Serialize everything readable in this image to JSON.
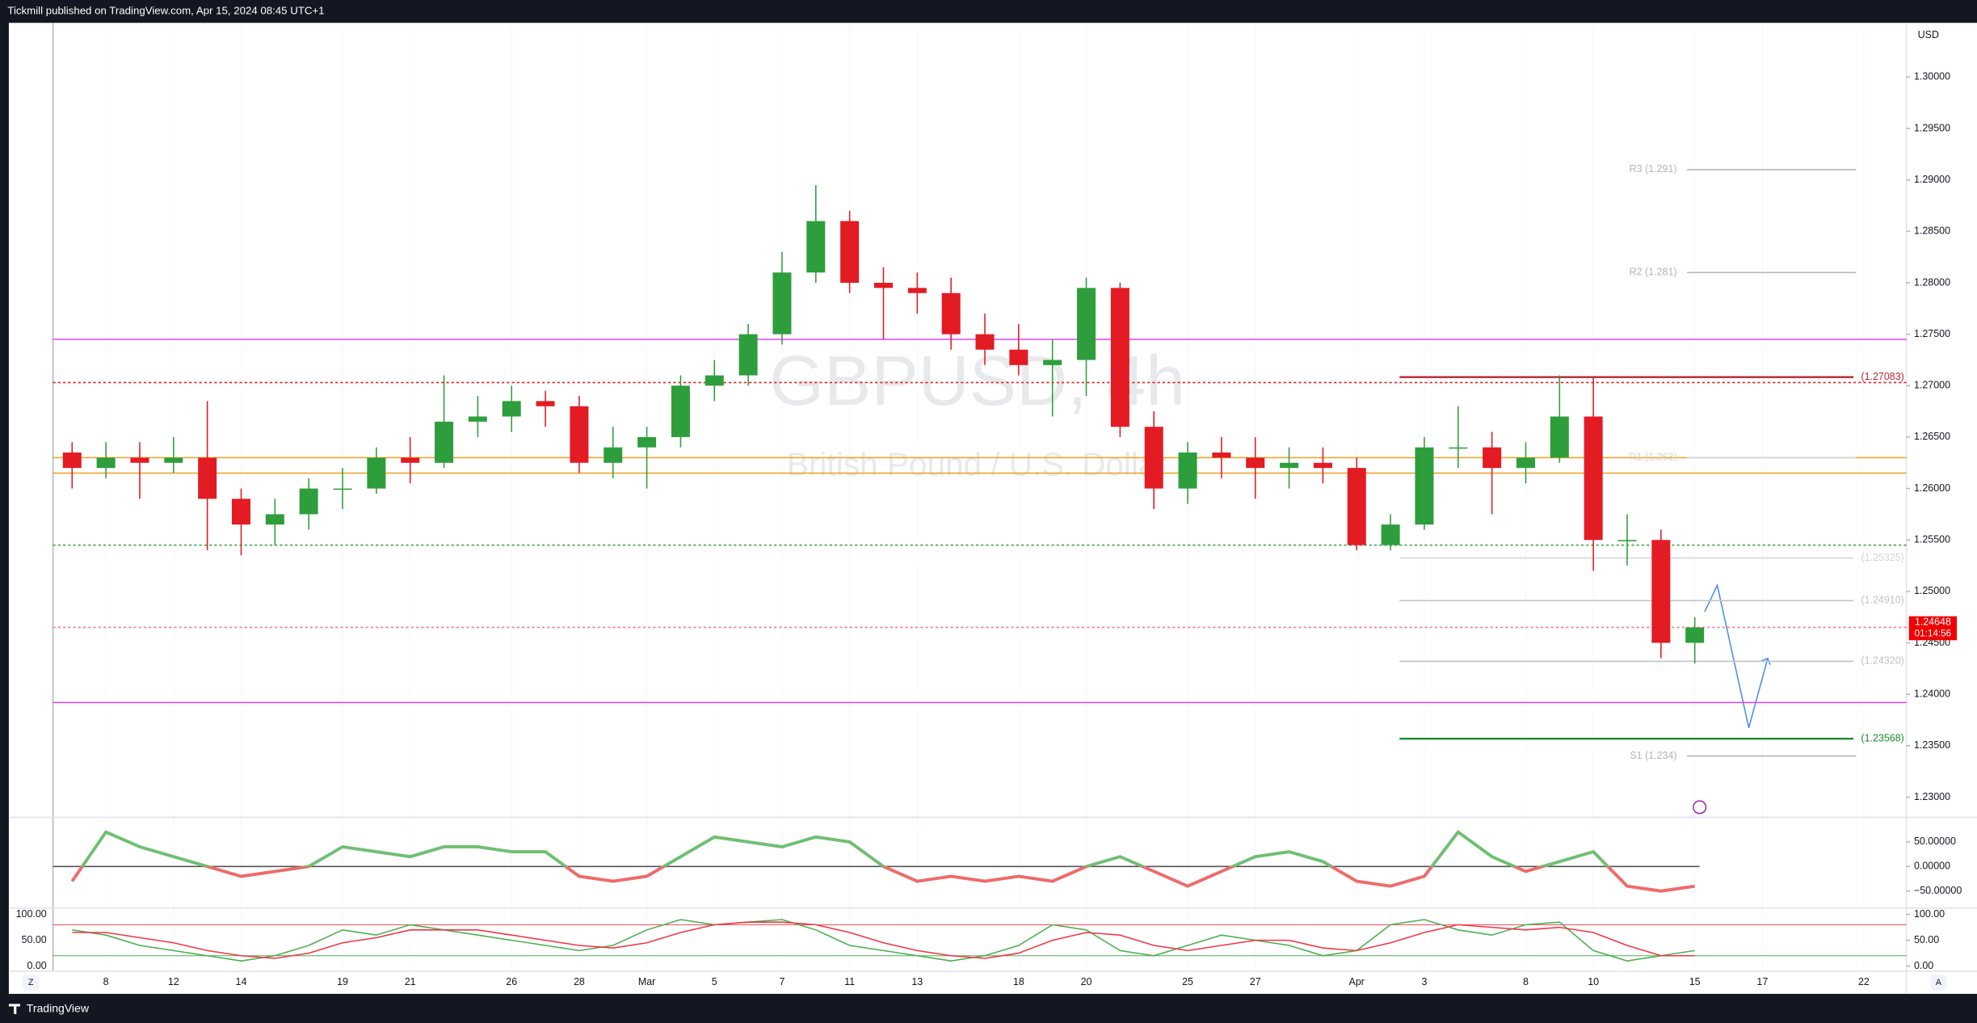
{
  "header": {
    "title": "Tickmill published on TradingView.com, Apr 15, 2024 08:45 UTC+1"
  },
  "footer": {
    "brand": "TradingView",
    "left_button": "Z",
    "right_button": "A"
  },
  "chart_data": [
    {
      "type": "candlestick",
      "title": "GBPUSD, 4h",
      "subtitle": "British Pound / U.S. Dollar",
      "currency": "USD",
      "colors": {
        "up": "#2e9e3c",
        "down": "#e31b23"
      },
      "x": [
        -1,
        0,
        1,
        2,
        3,
        4,
        5,
        6,
        7,
        8,
        9,
        10,
        11,
        12,
        13,
        14,
        15,
        16,
        17,
        18,
        19,
        20,
        21,
        22,
        23,
        24,
        25,
        26,
        27,
        28,
        29,
        30,
        31,
        32,
        33,
        34,
        35,
        36,
        37,
        38,
        39,
        40,
        41,
        42,
        43,
        44,
        45,
        46,
        47
      ],
      "open": [
        1.2635,
        1.262,
        1.263,
        1.2625,
        1.263,
        1.259,
        1.2565,
        1.2575,
        1.26,
        1.26,
        1.263,
        1.2625,
        1.2665,
        1.267,
        1.2685,
        1.268,
        1.2625,
        1.264,
        1.265,
        1.27,
        1.271,
        1.275,
        1.281,
        1.286,
        1.28,
        1.2795,
        1.279,
        1.275,
        1.2735,
        1.272,
        1.2725,
        1.2795,
        1.266,
        1.26,
        1.2635,
        1.263,
        1.262,
        1.2625,
        1.262,
        1.2545,
        1.2565,
        1.264,
        1.264,
        1.262,
        1.263,
        1.267,
        1.255,
        1.255,
        1.245
      ],
      "high": [
        1.2645,
        1.2645,
        1.2645,
        1.265,
        1.2685,
        1.26,
        1.259,
        1.261,
        1.262,
        1.264,
        1.265,
        1.271,
        1.269,
        1.27,
        1.2695,
        1.269,
        1.266,
        1.266,
        1.271,
        1.2725,
        1.276,
        1.283,
        1.2895,
        1.287,
        1.2815,
        1.281,
        1.2805,
        1.277,
        1.276,
        1.2745,
        1.2805,
        1.28,
        1.2675,
        1.2645,
        1.265,
        1.265,
        1.264,
        1.264,
        1.263,
        1.2575,
        1.265,
        1.268,
        1.2655,
        1.2645,
        1.271,
        1.2708,
        1.2575,
        1.256,
        1.2475
      ],
      "low": [
        1.26,
        1.261,
        1.259,
        1.2615,
        1.254,
        1.2535,
        1.2545,
        1.256,
        1.258,
        1.2595,
        1.2605,
        1.262,
        1.265,
        1.2655,
        1.266,
        1.2615,
        1.261,
        1.26,
        1.264,
        1.2685,
        1.27,
        1.274,
        1.28,
        1.279,
        1.2745,
        1.277,
        1.2735,
        1.272,
        1.271,
        1.267,
        1.269,
        1.265,
        1.258,
        1.2585,
        1.261,
        1.259,
        1.26,
        1.2605,
        1.254,
        1.254,
        1.256,
        1.262,
        1.2575,
        1.2605,
        1.2625,
        1.252,
        1.2525,
        1.2435,
        1.243
      ],
      "close": [
        1.262,
        1.263,
        1.2625,
        1.263,
        1.259,
        1.2565,
        1.2575,
        1.26,
        1.26,
        1.263,
        1.2625,
        1.2665,
        1.267,
        1.2685,
        1.268,
        1.2625,
        1.264,
        1.265,
        1.27,
        1.271,
        1.275,
        1.281,
        1.286,
        1.28,
        1.2795,
        1.279,
        1.275,
        1.2735,
        1.272,
        1.2725,
        1.2795,
        1.266,
        1.26,
        1.2635,
        1.263,
        1.262,
        1.2625,
        1.262,
        1.2545,
        1.2565,
        1.264,
        1.264,
        1.262,
        1.263,
        1.267,
        1.255,
        1.255,
        1.245,
        1.2465
      ],
      "xlim": [
        -1.567,
        53.26
      ],
      "xticks": [
        {
          "value": 0,
          "label": "8"
        },
        {
          "value": 2,
          "label": "12"
        },
        {
          "value": 4,
          "label": "14"
        },
        {
          "value": 7,
          "label": "19"
        },
        {
          "value": 9,
          "label": "21"
        },
        {
          "value": 12,
          "label": "26"
        },
        {
          "value": 14,
          "label": "28"
        },
        {
          "value": 16,
          "label": "Mar"
        },
        {
          "value": 18,
          "label": "5"
        },
        {
          "value": 20,
          "label": "7"
        },
        {
          "value": 22,
          "label": "11"
        },
        {
          "value": 24,
          "label": "13"
        },
        {
          "value": 27,
          "label": "18"
        },
        {
          "value": 29,
          "label": "20"
        },
        {
          "value": 32,
          "label": "25"
        },
        {
          "value": 34,
          "label": "27"
        },
        {
          "value": 37,
          "label": "Apr"
        },
        {
          "value": 39,
          "label": "3"
        },
        {
          "value": 42,
          "label": "8"
        },
        {
          "value": 44,
          "label": "10"
        },
        {
          "value": 47,
          "label": "15"
        },
        {
          "value": 49,
          "label": "17"
        },
        {
          "value": 52,
          "label": "22"
        }
      ],
      "ylim": [
        1.22804,
        1.30527
      ],
      "yticks": [
        {
          "value": 1.23,
          "label": "1.23000"
        },
        {
          "value": 1.235,
          "label": "1.23500"
        },
        {
          "value": 1.24,
          "label": "1.24000"
        },
        {
          "value": 1.245,
          "label": "1.24500"
        },
        {
          "value": 1.25,
          "label": "1.25000"
        },
        {
          "value": 1.255,
          "label": "1.25500"
        },
        {
          "value": 1.26,
          "label": "1.26000"
        },
        {
          "value": 1.265,
          "label": "1.26500"
        },
        {
          "value": 1.27,
          "label": "1.27000"
        },
        {
          "value": 1.275,
          "label": "1.27500"
        },
        {
          "value": 1.28,
          "label": "1.28000"
        },
        {
          "value": 1.285,
          "label": "1.28500"
        },
        {
          "value": 1.29,
          "label": "1.29000"
        },
        {
          "value": 1.295,
          "label": "1.29500"
        },
        {
          "value": 1.3,
          "label": "1.30000"
        }
      ],
      "levels": [
        {
          "label": "R3 (1.291)",
          "value": 1.291,
          "style": "pivot",
          "color": "#b2b5be"
        },
        {
          "label": "R2 (1.281)",
          "value": 1.281,
          "style": "pivot",
          "color": "#b2b5be"
        },
        {
          "label": "R1 (1.263)",
          "value": 1.263,
          "style": "pivot",
          "color": "#d1d4dc"
        },
        {
          "label": "S1 (1.234)",
          "value": 1.234,
          "style": "pivot",
          "color": "#b2b5be"
        },
        {
          "label": "(1.27083)",
          "value": 1.27083,
          "style": "level",
          "color": "#b22833"
        },
        {
          "label": "(1.25325)",
          "value": 1.25325,
          "style": "level",
          "color": "#d1d4dc"
        },
        {
          "label": "(1.24910)",
          "value": 1.2491,
          "style": "level",
          "color": "#c0c3cb"
        },
        {
          "label": "(1.24320)",
          "value": 1.2432,
          "style": "level",
          "color": "#c0c3cb"
        },
        {
          "label": "(1.23568)",
          "value": 1.23568,
          "style": "level",
          "color": "#1b8a2f"
        }
      ],
      "lines": [
        {
          "value": 1.263,
          "color": "#f0a020",
          "dash": false
        },
        {
          "value": 1.2615,
          "color": "#f0a020",
          "dash": false
        },
        {
          "value": 1.2745,
          "color": "#e040fb",
          "dash": false
        },
        {
          "value": 1.2392,
          "color": "#e040fb",
          "dash": false
        },
        {
          "value": 1.2703,
          "color": "#e31b23",
          "dash": true
        },
        {
          "value": 1.2545,
          "color": "#2e9e3c",
          "dash": true
        },
        {
          "value": 1.2465,
          "color": "#f08080",
          "dash": true
        }
      ],
      "last_price": {
        "value": 1.24648,
        "label": "1.24648",
        "countdown": "01:14:56",
        "color": "#f00000"
      }
    },
    {
      "type": "line",
      "color_above": "#6fbf73",
      "color_below": "#ef6a6a",
      "x": [
        -1,
        0,
        1,
        2,
        3,
        4,
        5,
        6,
        7,
        8,
        9,
        10,
        11,
        12,
        13,
        14,
        15,
        16,
        17,
        18,
        19,
        20,
        21,
        22,
        23,
        24,
        25,
        26,
        27,
        28,
        29,
        30,
        31,
        32,
        33,
        34,
        35,
        36,
        37,
        38,
        39,
        40,
        41,
        42,
        43,
        44,
        45,
        46,
        47
      ],
      "values": [
        -30,
        70,
        40,
        20,
        0,
        -20,
        -10,
        0,
        40,
        30,
        20,
        40,
        40,
        30,
        30,
        -20,
        -30,
        -20,
        20,
        60,
        50,
        40,
        60,
        50,
        0,
        -30,
        -20,
        -30,
        -20,
        -30,
        0,
        20,
        -10,
        -40,
        -10,
        20,
        30,
        10,
        -30,
        -40,
        -20,
        70,
        20,
        -10,
        10,
        30,
        -40,
        -50,
        -40
      ],
      "ylim": [
        -79.5,
        94.9
      ],
      "yticks": [
        {
          "value": 50,
          "label": "50.00000"
        },
        {
          "value": 0,
          "label": "0.00000"
        },
        {
          "value": -50,
          "label": "−50.00000"
        }
      ]
    },
    {
      "type": "stochastic",
      "x": [
        -1,
        0,
        1,
        2,
        3,
        4,
        5,
        6,
        7,
        8,
        9,
        10,
        11,
        12,
        13,
        14,
        15,
        16,
        17,
        18,
        19,
        20,
        21,
        22,
        23,
        24,
        25,
        26,
        27,
        28,
        29,
        30,
        31,
        32,
        33,
        34,
        35,
        36,
        37,
        38,
        39,
        40,
        41,
        42,
        43,
        44,
        45,
        46,
        47
      ],
      "series": [
        {
          "color": "#4caf50",
          "values": [
            70,
            60,
            40,
            30,
            20,
            10,
            20,
            40,
            70,
            60,
            80,
            70,
            60,
            50,
            40,
            30,
            40,
            70,
            90,
            80,
            85,
            90,
            70,
            40,
            30,
            20,
            10,
            20,
            40,
            80,
            70,
            30,
            20,
            40,
            60,
            50,
            40,
            20,
            30,
            80,
            90,
            70,
            60,
            80,
            85,
            30,
            10,
            20,
            30
          ]
        },
        {
          "color": "#f23645",
          "values": [
            65,
            65,
            55,
            45,
            30,
            20,
            15,
            25,
            45,
            55,
            70,
            70,
            70,
            60,
            50,
            40,
            35,
            45,
            65,
            80,
            85,
            85,
            80,
            65,
            45,
            30,
            20,
            15,
            25,
            50,
            65,
            60,
            40,
            30,
            40,
            50,
            50,
            35,
            30,
            45,
            65,
            80,
            75,
            70,
            75,
            65,
            40,
            20,
            20
          ]
        }
      ],
      "levels": [
        {
          "value": 80,
          "color": "#f23645"
        },
        {
          "value": 20,
          "color": "#4caf50"
        }
      ],
      "ylim": [
        -9.8,
        104.9
      ],
      "yticks": [
        {
          "value": 100,
          "label": "100.00"
        },
        {
          "value": 50,
          "label": "50.00"
        },
        {
          "value": 0,
          "label": "0.00"
        }
      ]
    }
  ]
}
